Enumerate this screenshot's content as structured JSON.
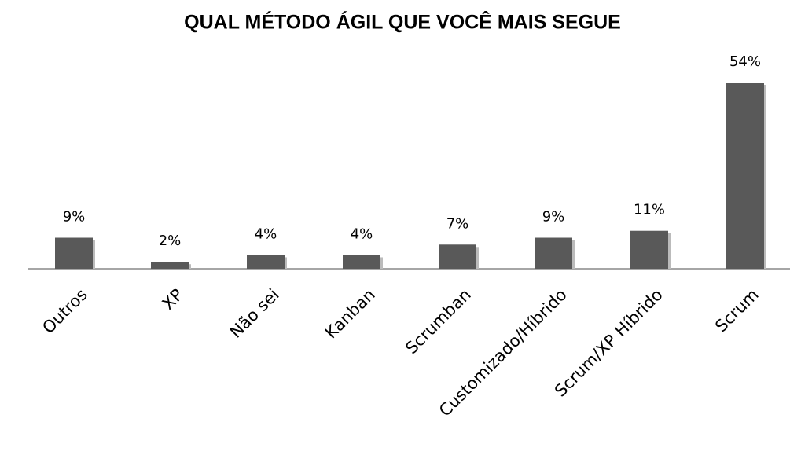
{
  "chart_data": {
    "type": "bar",
    "title": "QUAL MÉTODO ÁGIL QUE VOCÊ MAIS SEGUE",
    "categories": [
      "Outros",
      "XP",
      "Não sei",
      "Kanban",
      "Scrumban",
      "Customizado/Híbrido",
      "Scrum/XP Híbrido",
      "Scrum"
    ],
    "values": [
      9,
      2,
      4,
      4,
      7,
      9,
      11,
      54
    ],
    "value_labels": [
      "9%",
      "2%",
      "4%",
      "4%",
      "7%",
      "9%",
      "11%",
      "54%"
    ],
    "color": "#595959"
  }
}
